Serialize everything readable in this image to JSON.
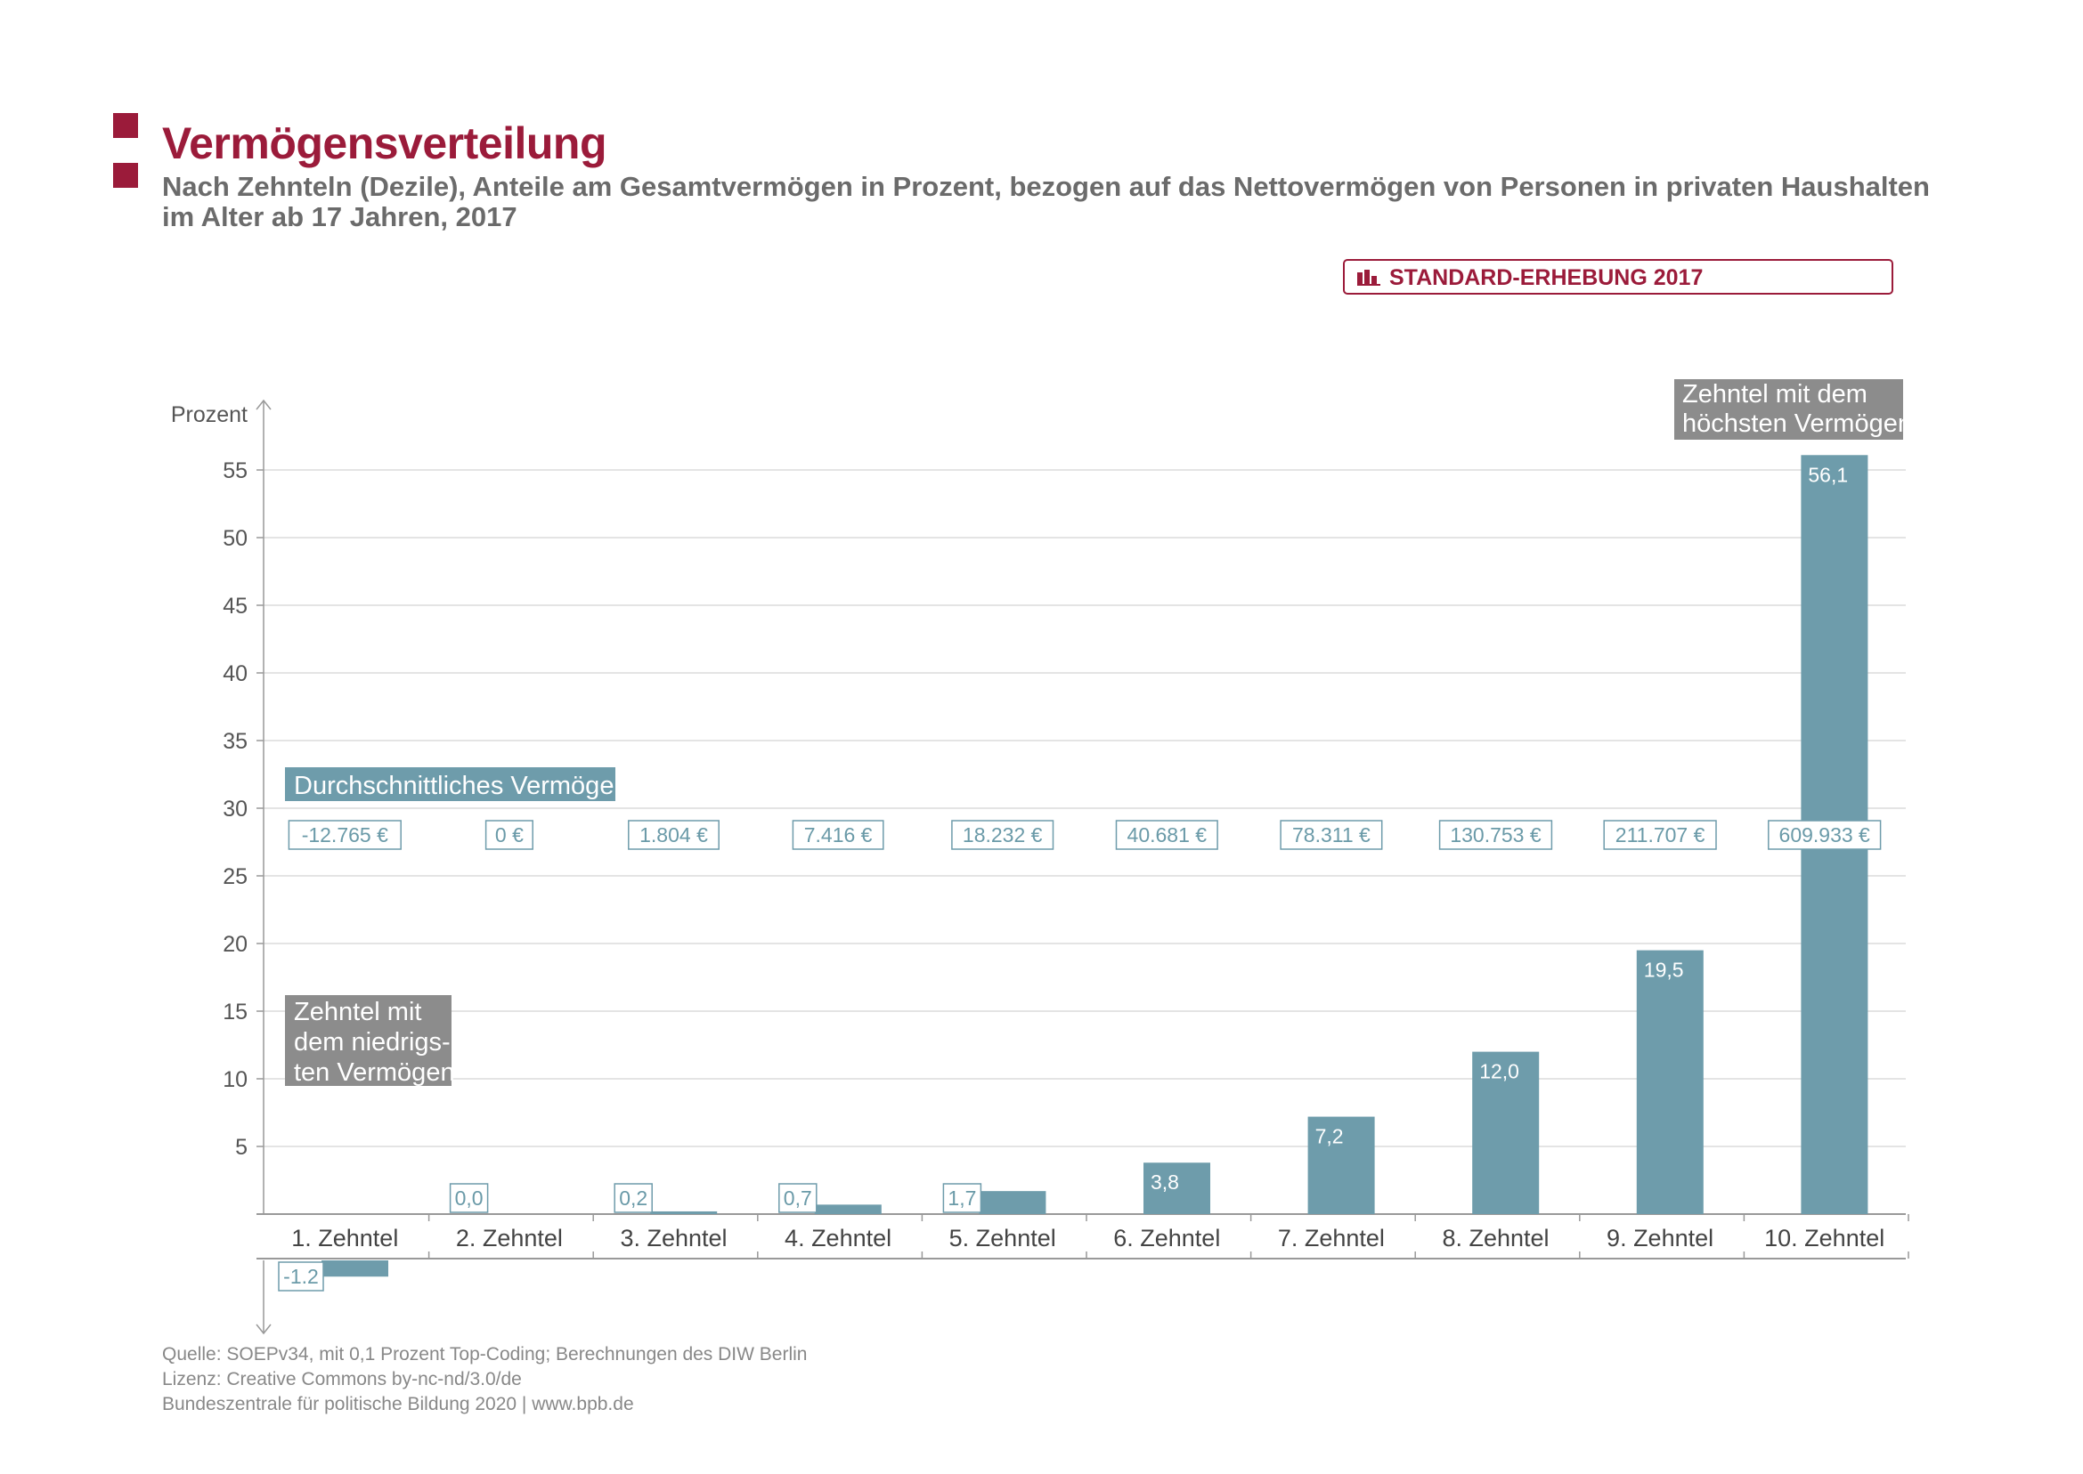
{
  "header": {
    "title": "Vermögensverteilung",
    "subtitle": "Nach Zehnteln (Dezile), Anteile am Gesamtvermögen in Prozent, bezogen auf das Nettovermögen von Personen in privaten Haushalten im Alter ab 17 Jahren, 2017",
    "badge": "STANDARD-ERHEBUNG 2017"
  },
  "footer": {
    "source": "Quelle: SOEPv34, mit 0,1 Prozent Top-Coding; Berechnungen des DIW Berlin",
    "license": "Lizenz: Creative Commons by-nc-nd/3.0/de",
    "publisher": "Bundeszentrale  für  politische  Bildung  2020  |  www.bpb.de"
  },
  "colors": {
    "brand": "#9b1b3a",
    "bar": "#6e9cab",
    "annotation": "#8c8c8c",
    "axis": "#999999",
    "grid": "#dcdcdc"
  },
  "chart_data": {
    "type": "bar",
    "ylabel": "Prozent",
    "ylim": [
      -8,
      58
    ],
    "yticks": [
      5,
      10,
      15,
      20,
      25,
      30,
      35,
      40,
      45,
      50,
      55
    ],
    "grid": true,
    "categories": [
      "1. Zehntel",
      "2. Zehntel",
      "3. Zehntel",
      "4. Zehntel",
      "5. Zehntel",
      "6. Zehntel",
      "7. Zehntel",
      "8. Zehntel",
      "9. Zehntel",
      "10. Zehntel"
    ],
    "values": [
      -1.2,
      0.0,
      0.2,
      0.7,
      1.7,
      3.8,
      7.2,
      12.0,
      19.5,
      56.1
    ],
    "value_labels": [
      "-1.2",
      "0,0",
      "0,2",
      "0,7",
      "1,7",
      "3,8",
      "7,2",
      "12,0",
      "19,5",
      "56,1"
    ],
    "average_label": "Durchschnittliches Vermögen",
    "averages": [
      "-12.765 €",
      "0 €",
      "1.804 €",
      "7.416 €",
      "18.232 €",
      "40.681 €",
      "78.311 €",
      "130.753 €",
      "211.707 €",
      "609.933 €"
    ],
    "annotations": {
      "lowest": [
        "Zehntel mit",
        "dem niedrigs-",
        "ten Vermögen"
      ],
      "highest": [
        "Zehntel mit dem",
        "höchsten Vermögen"
      ]
    }
  }
}
